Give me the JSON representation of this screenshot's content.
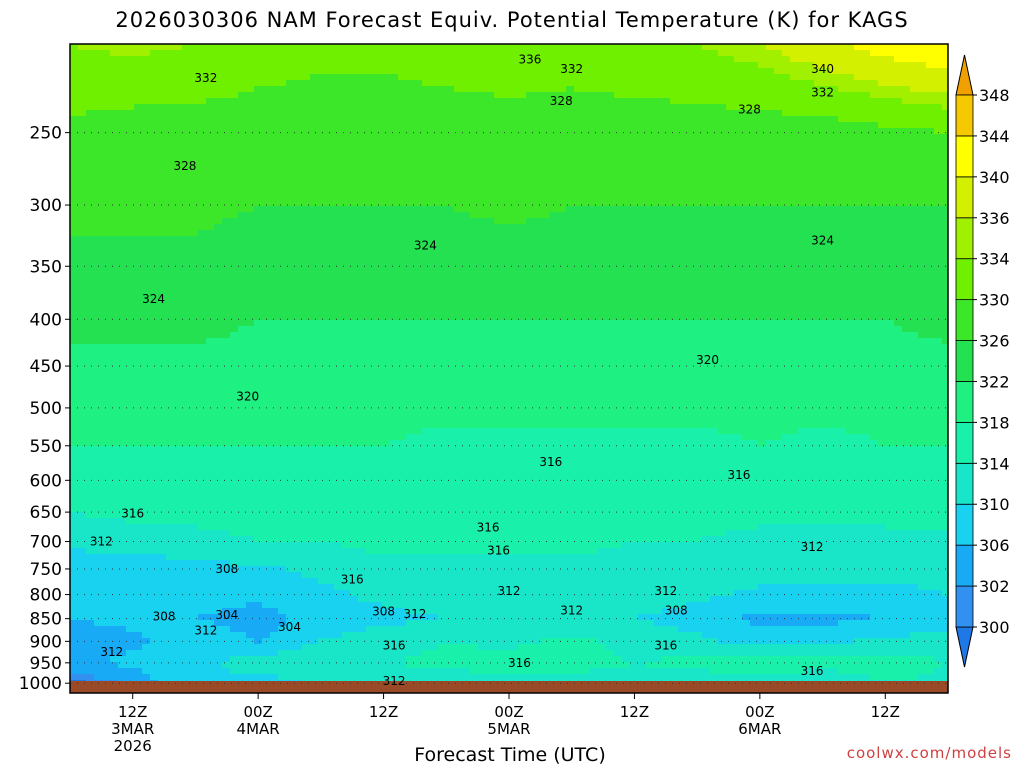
{
  "title": "2026030306 NAM Forecast Equiv. Potential Temperature (K) for KAGS",
  "credit": "coolwx.com/models",
  "chart_data": {
    "type": "heatmap",
    "title": "2026030306 NAM Forecast Equiv. Potential Temperature (K) for KAGS",
    "xlabel": "Forecast Time (UTC)",
    "ylabel": "",
    "units": "K",
    "x_range_hours": [
      0,
      84
    ],
    "x_ticks": [
      {
        "hour": 6,
        "lines": [
          "12Z",
          "3MAR",
          "2026"
        ]
      },
      {
        "hour": 18,
        "lines": [
          "00Z",
          "4MAR"
        ]
      },
      {
        "hour": 30,
        "lines": [
          "12Z"
        ]
      },
      {
        "hour": 42,
        "lines": [
          "00Z",
          "5MAR"
        ]
      },
      {
        "hour": 54,
        "lines": [
          "12Z"
        ]
      },
      {
        "hour": 66,
        "lines": [
          "00Z",
          "6MAR"
        ]
      },
      {
        "hour": 78,
        "lines": [
          "12Z"
        ]
      }
    ],
    "y_axis": "pressure_log",
    "y_range_hpa": [
      1025,
      200
    ],
    "y_ticks": [
      250,
      300,
      350,
      400,
      450,
      500,
      550,
      600,
      650,
      700,
      750,
      800,
      850,
      900,
      950,
      1000
    ],
    "colorbar": {
      "levels": [
        300,
        302,
        306,
        310,
        314,
        318,
        322,
        326,
        330,
        334,
        336,
        340,
        344,
        348
      ],
      "colors": [
        "#1e78e6",
        "#3290f0",
        "#19aaf5",
        "#19d2f0",
        "#19e6c8",
        "#19f0aa",
        "#1ef082",
        "#23e150",
        "#3ce628",
        "#6ef000",
        "#a0f000",
        "#d2f000",
        "#ffff00",
        "#f5c800",
        "#f0a000"
      ],
      "label_values": [
        300,
        302,
        306,
        310,
        314,
        318,
        322,
        326,
        330,
        334,
        336,
        340,
        344,
        348
      ]
    },
    "profile_pressures": [
      1000,
      950,
      900,
      850,
      800,
      750,
      700,
      650,
      600,
      550,
      500,
      450,
      400,
      350,
      300,
      250,
      200
    ],
    "time_hours": [
      0,
      6,
      12,
      18,
      24,
      30,
      36,
      42,
      48,
      54,
      60,
      66,
      72,
      78,
      84
    ],
    "theta_e": [
      [
        299,
        303,
        310,
        308,
        311,
        310,
        312,
        312,
        313,
        313,
        312,
        311,
        310,
        314,
        313
      ],
      [
        305,
        307,
        309,
        312,
        313,
        314,
        315,
        316,
        315,
        314,
        315,
        318,
        316,
        316,
        314
      ],
      [
        304,
        305,
        309,
        306,
        310,
        312,
        314,
        313,
        315,
        313,
        311,
        308,
        309,
        311,
        312
      ],
      [
        306,
        307,
        306,
        304,
        308,
        309,
        310,
        311,
        311,
        310,
        308,
        305,
        305,
        306,
        307
      ],
      [
        307,
        306,
        308,
        307,
        309,
        311,
        312,
        311,
        311,
        312,
        311,
        309,
        309,
        309,
        310
      ],
      [
        306,
        307,
        309,
        309,
        311,
        313,
        313,
        313,
        313,
        313,
        313,
        312,
        311,
        311,
        311
      ],
      [
        312,
        312,
        313,
        314,
        314,
        315,
        315,
        315,
        315,
        314,
        314,
        313,
        313,
        313,
        313
      ],
      [
        314,
        315,
        315,
        315,
        315,
        316,
        316,
        316,
        316,
        315,
        315,
        315,
        315,
        315,
        316
      ],
      [
        316,
        317,
        317,
        317,
        316,
        316,
        316,
        316,
        316,
        316,
        316,
        316,
        316,
        316,
        316
      ],
      [
        318,
        318,
        318,
        318,
        318,
        318,
        317,
        317,
        317,
        317,
        317,
        318,
        317,
        318,
        318
      ],
      [
        319,
        320,
        320,
        319,
        319,
        319,
        319,
        319,
        319,
        319,
        319,
        319,
        319,
        319,
        319
      ],
      [
        321,
        321,
        321,
        321,
        320,
        321,
        321,
        321,
        321,
        321,
        320,
        320,
        320,
        321,
        321
      ],
      [
        323,
        323,
        323,
        322,
        322,
        322,
        322,
        322,
        322,
        322,
        322,
        322,
        322,
        322,
        323
      ],
      [
        325,
        325,
        325,
        324,
        324,
        324,
        324,
        324,
        324,
        324,
        324,
        324,
        324,
        324,
        324
      ],
      [
        327,
        327,
        327,
        326,
        326,
        326,
        326,
        327,
        326,
        326,
        326,
        326,
        326,
        326,
        326
      ],
      [
        329,
        328,
        328,
        328,
        328,
        328,
        328,
        328,
        328,
        328,
        328,
        328,
        328,
        329,
        330
      ],
      [
        334,
        335,
        334,
        332,
        331,
        331,
        332,
        333,
        332,
        333,
        334,
        336,
        339,
        342,
        344
      ]
    ],
    "contour_labels": [
      {
        "value": "336",
        "hour": 44,
        "hpa": 208
      },
      {
        "value": "332",
        "hour": 48,
        "hpa": 213
      },
      {
        "value": "332",
        "hour": 13,
        "hpa": 218
      },
      {
        "value": "340",
        "hour": 72,
        "hpa": 213
      },
      {
        "value": "332",
        "hour": 72,
        "hpa": 226
      },
      {
        "value": "328",
        "hour": 47,
        "hpa": 231
      },
      {
        "value": "328",
        "hour": 65,
        "hpa": 236
      },
      {
        "value": "328",
        "hour": 11,
        "hpa": 272
      },
      {
        "value": "324",
        "hour": 34,
        "hpa": 332
      },
      {
        "value": "324",
        "hour": 72,
        "hpa": 328
      },
      {
        "value": "324",
        "hour": 8,
        "hpa": 380
      },
      {
        "value": "320",
        "hour": 17,
        "hpa": 486
      },
      {
        "value": "320",
        "hour": 61,
        "hpa": 443
      },
      {
        "value": "316",
        "hour": 46,
        "hpa": 573
      },
      {
        "value": "316",
        "hour": 64,
        "hpa": 592
      },
      {
        "value": "316",
        "hour": 6,
        "hpa": 652
      },
      {
        "value": "312",
        "hour": 3,
        "hpa": 700
      },
      {
        "value": "316",
        "hour": 40,
        "hpa": 676
      },
      {
        "value": "316",
        "hour": 41,
        "hpa": 716
      },
      {
        "value": "312",
        "hour": 71,
        "hpa": 710
      },
      {
        "value": "308",
        "hour": 15,
        "hpa": 750
      },
      {
        "value": "316",
        "hour": 27,
        "hpa": 770
      },
      {
        "value": "312",
        "hour": 42,
        "hpa": 793
      },
      {
        "value": "312",
        "hour": 57,
        "hpa": 793
      },
      {
        "value": "312",
        "hour": 48,
        "hpa": 833
      },
      {
        "value": "308",
        "hour": 58,
        "hpa": 833
      },
      {
        "value": "308",
        "hour": 9,
        "hpa": 845
      },
      {
        "value": "304",
        "hour": 15,
        "hpa": 842
      },
      {
        "value": "308",
        "hour": 30,
        "hpa": 835
      },
      {
        "value": "312",
        "hour": 33,
        "hpa": 840
      },
      {
        "value": "312",
        "hour": 13,
        "hpa": 876
      },
      {
        "value": "304",
        "hour": 21,
        "hpa": 868
      },
      {
        "value": "312",
        "hour": 4,
        "hpa": 925
      },
      {
        "value": "316",
        "hour": 31,
        "hpa": 910
      },
      {
        "value": "316",
        "hour": 57,
        "hpa": 910
      },
      {
        "value": "316",
        "hour": 43,
        "hpa": 950
      },
      {
        "value": "316",
        "hour": 71,
        "hpa": 970
      },
      {
        "value": "312",
        "hour": 31,
        "hpa": 995
      }
    ],
    "grid": true,
    "legend": "colorbar-right"
  }
}
